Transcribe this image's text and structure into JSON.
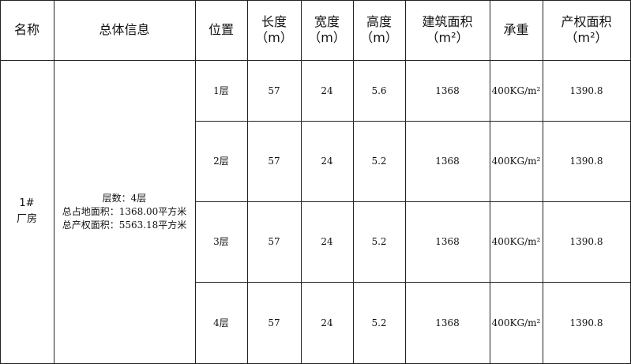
{
  "table": {
    "header": [
      [
        "名称"
      ],
      [
        "总体信息"
      ],
      [
        "位置"
      ],
      [
        "长度",
        "（m）"
      ],
      [
        "宽度",
        "（m）"
      ],
      [
        "高度",
        "（m）"
      ],
      [
        "建筑面积",
        "（m²）"
      ],
      [
        "承重"
      ],
      [
        "产权面积",
        "（m²）"
      ]
    ],
    "name": [
      "1#",
      "厂房"
    ],
    "info": [
      "层数：4层",
      "总占地面积：1368.00平方米",
      "总产权面积：5563.18平方米"
    ],
    "rows": [
      [
        "1层",
        "57",
        "24",
        "5.6",
        "1368",
        "400KG/m²",
        "1390.8"
      ],
      [
        "2层",
        "57",
        "24",
        "5.2",
        "1368",
        "400KG/m²",
        "1390.8"
      ],
      [
        "3层",
        "57",
        "24",
        "5.2",
        "1368",
        "400KG/m²",
        "1390.8"
      ],
      [
        "4层",
        "57",
        "24",
        "5.2",
        "1368",
        "400KG/m²",
        "1390.8"
      ]
    ]
  }
}
